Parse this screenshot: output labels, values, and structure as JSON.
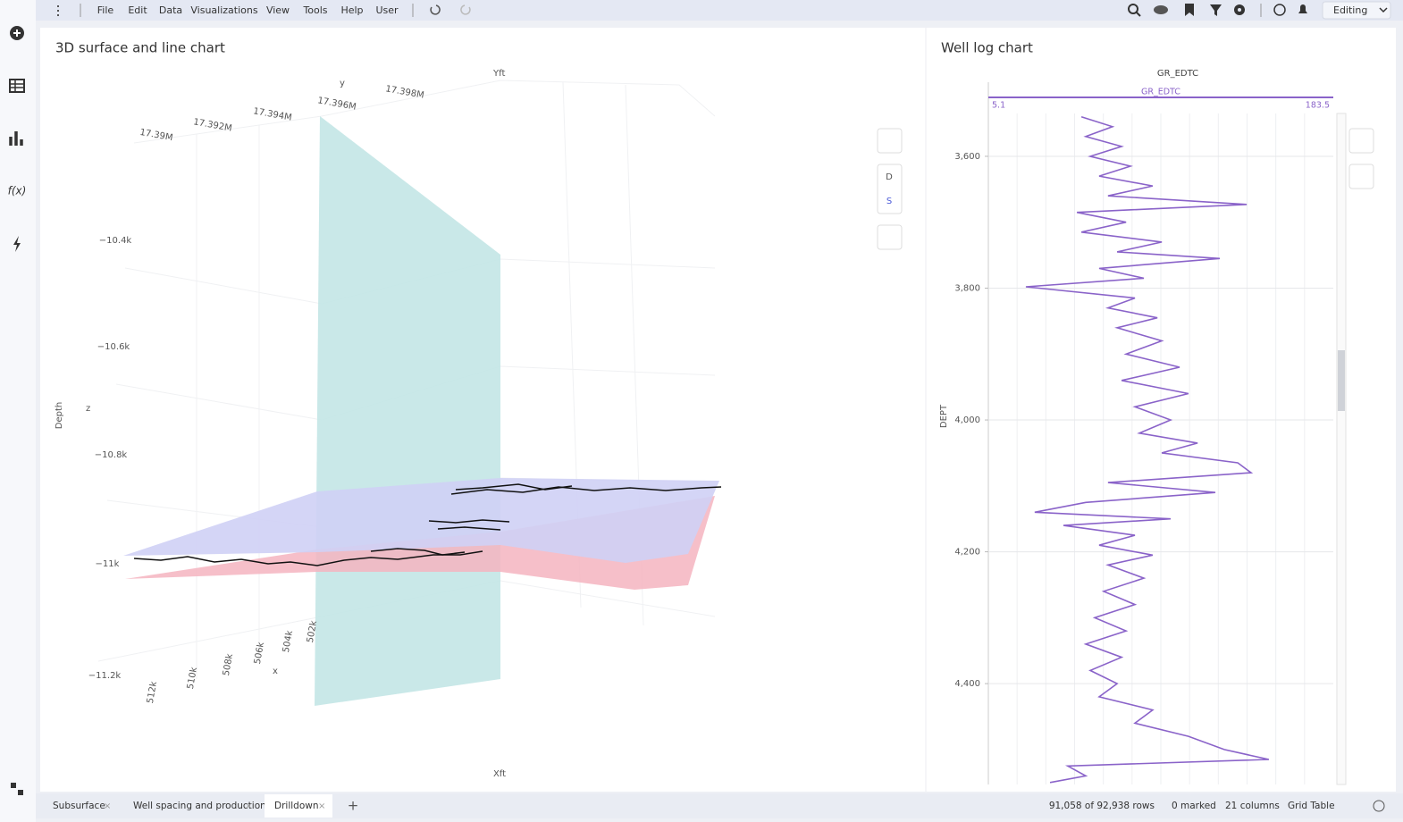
{
  "menu": [
    "File",
    "Edit",
    "Data",
    "Visualizations",
    "View",
    "Tools",
    "Help",
    "User"
  ],
  "mode": "Editing",
  "surface_chart": {
    "title": "3D surface and line chart",
    "y_axis_label": "y",
    "y_axis_title": "Yft",
    "z_axis_label": "z",
    "z_axis_title": "Depth",
    "x_axis_label": "x",
    "x_axis_title": "Xft",
    "y_ticks": [
      "17.39M",
      "17.392M",
      "17.394M",
      "17.396M",
      "17.398M"
    ],
    "z_ticks": [
      "−10.4k",
      "−10.6k",
      "−10.8k",
      "−11k",
      "−11.2k"
    ],
    "x_ticks": [
      "512k",
      "510k",
      "508k",
      "506k",
      "504k",
      "502k"
    ],
    "buttons": [
      "D",
      "S"
    ]
  },
  "well_log": {
    "type": "line",
    "title": "Well log chart",
    "track_title": "GR_EDTC",
    "y_label": "DEPT",
    "series": [
      {
        "name": "GR_EDTC",
        "color": "#8a63c9",
        "depth": [
          3540,
          3555,
          3570,
          3585,
          3600,
          3615,
          3630,
          3645,
          3660,
          3673,
          3685,
          3700,
          3715,
          3730,
          3745,
          3755,
          3770,
          3785,
          3798,
          3815,
          3830,
          3845,
          3860,
          3880,
          3900,
          3920,
          3940,
          3960,
          3980,
          4000,
          4020,
          4035,
          4050,
          4065,
          4080,
          4095,
          4110,
          4125,
          4140,
          4150,
          4160,
          4175,
          4190,
          4205,
          4220,
          4240,
          4260,
          4280,
          4300,
          4320,
          4340,
          4360,
          4380,
          4400,
          4420,
          4440,
          4460,
          4480,
          4500,
          4515,
          4525,
          4540,
          4550
        ],
        "values": [
          53.2,
          69.3,
          55.5,
          74.0,
          57.8,
          78.6,
          62.4,
          90.1,
          67.0,
          138.7,
          50.9,
          76.3,
          53.2,
          94.8,
          71.7,
          124.8,
          62.4,
          85.5,
          24.5,
          80.9,
          67.0,
          92.5,
          71.7,
          94.8,
          76.3,
          104.0,
          74.0,
          108.6,
          80.9,
          99.4,
          83.2,
          113.3,
          94.8,
          134.1,
          141.0,
          67.0,
          122.5,
          55.5,
          29.1,
          99.4,
          43.9,
          80.9,
          62.4,
          90.1,
          67.0,
          85.5,
          64.7,
          80.9,
          60.1,
          76.3,
          55.5,
          74.0,
          57.8,
          71.7,
          62.4,
          90.1,
          80.9,
          108.6,
          127.1,
          150.2,
          46.2,
          55.5,
          37.0
        ]
      }
    ],
    "xlim": [
      5.1,
      183.5
    ],
    "xticks": [
      5.1,
      183.5
    ],
    "ylim": [
      3535,
      4553
    ],
    "yticks": [
      {
        "value": 3600,
        "label": "3,600"
      },
      {
        "value": 3800,
        "label": "3,800"
      },
      {
        "value": 4000,
        "label": "4,000"
      },
      {
        "value": 4200,
        "label": "4,200"
      },
      {
        "value": 4400,
        "label": "4,400"
      }
    ]
  },
  "tabs": [
    "Subsurface",
    "Well spacing and production",
    "Drilldown"
  ],
  "status": {
    "rows": "91,058 of 92,938 rows",
    "marked": "0 marked",
    "columns": "21 columns",
    "table": "Grid Table"
  }
}
